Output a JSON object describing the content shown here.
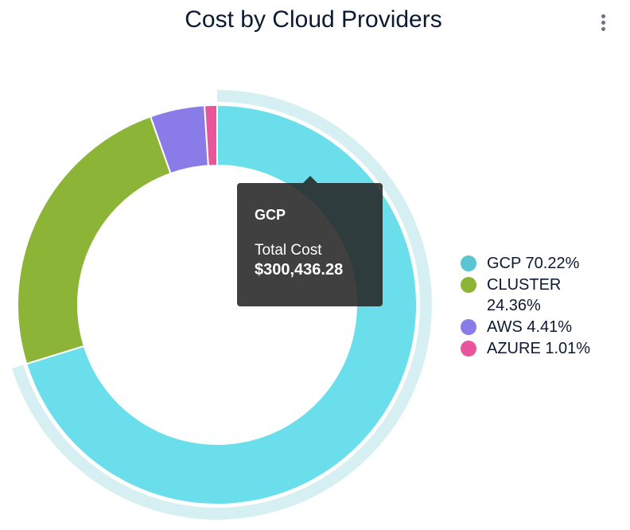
{
  "chart_data": {
    "type": "pie",
    "title": "Cost by Cloud Providers",
    "donut": true,
    "legend_position": "right",
    "series": [
      {
        "name": "GCP",
        "percent": 70.22,
        "color": "#6adfeb",
        "legend_color": "#5bc5d3",
        "label": "GCP 70.22%"
      },
      {
        "name": "CLUSTER",
        "percent": 24.36,
        "color": "#8cb437",
        "legend_color": "#8cb437",
        "label": "CLUSTER 24.36%"
      },
      {
        "name": "AWS",
        "percent": 4.41,
        "color": "#897ce8",
        "legend_color": "#897ce8",
        "label": "AWS 4.41%"
      },
      {
        "name": "AZURE",
        "percent": 1.01,
        "color": "#e8559b",
        "legend_color": "#e8559b",
        "label": "AZURE 1.01%"
      }
    ],
    "hovered": "GCP",
    "hover_halo_color": "#d6eff2"
  },
  "tooltip": {
    "name": "GCP",
    "label": "Total Cost",
    "value": "$300,436.28"
  },
  "menu_icon": "vertical-dots-icon"
}
